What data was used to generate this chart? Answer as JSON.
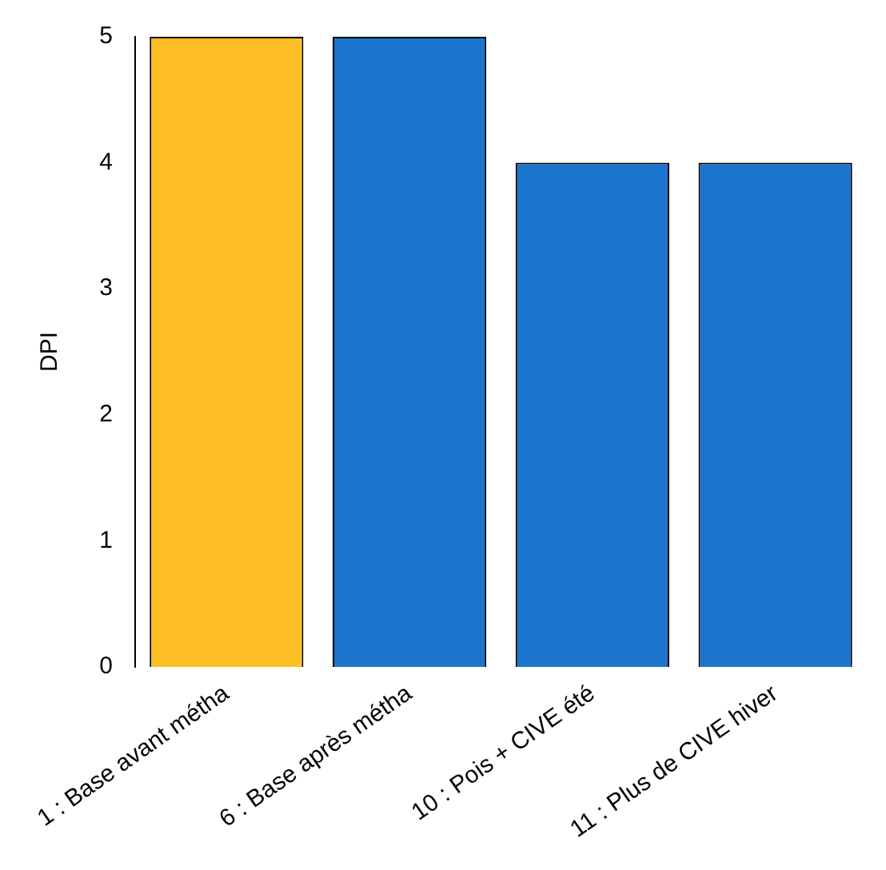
{
  "chart_data": {
    "type": "bar",
    "ylabel": "DPI",
    "categories": [
      "1 : Base avant métha",
      "6 : Base après métha",
      "10 : Pois + CIVE été",
      "11 : Plus de CIVE hiver"
    ],
    "values": [
      5,
      5,
      4,
      4
    ],
    "colors": [
      "#fdbf25",
      "#1b75cc",
      "#1b75cc",
      "#1b75cc"
    ],
    "ylim": [
      0,
      5
    ],
    "yticks": [
      0,
      1,
      2,
      3,
      4,
      5
    ],
    "grid": false,
    "legend": false
  }
}
